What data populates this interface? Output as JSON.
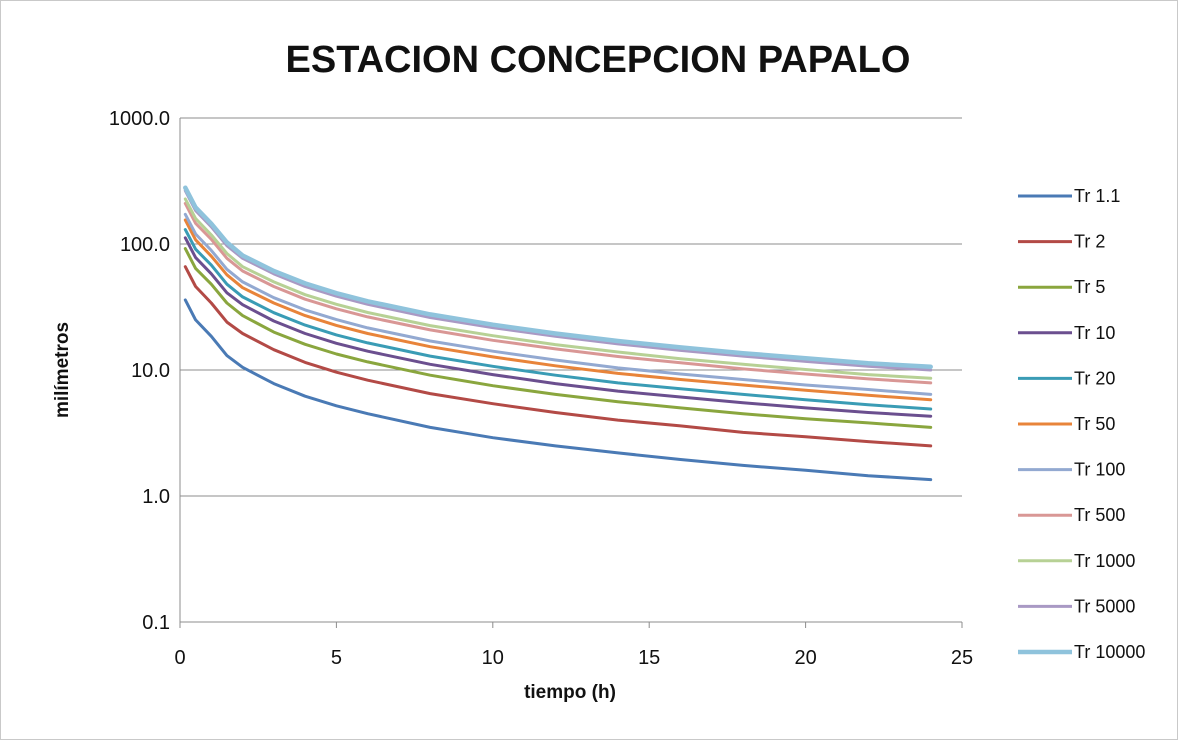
{
  "chart_data": {
    "type": "line",
    "title": "ESTACION CONCEPCION PAPALO",
    "xlabel": "tiempo (h)",
    "ylabel": "milímetros",
    "x_ticks": [
      "0",
      "5",
      "10",
      "15",
      "20",
      "25"
    ],
    "y_ticks": [
      "0.1",
      "1.0",
      "10.0",
      "100.0",
      "1000.0"
    ],
    "xlim": [
      0,
      25
    ],
    "ylim": [
      0.1,
      1000
    ],
    "y_scale": "log",
    "grid": "horizontal",
    "legend_position": "right",
    "x": [
      0.17,
      0.5,
      1,
      1.5,
      2,
      3,
      4,
      5,
      6,
      8,
      10,
      12,
      14,
      16,
      18,
      20,
      22,
      24
    ],
    "series": [
      {
        "name": "Tr 1.1",
        "color": "#4a7ab5",
        "values": [
          36,
          25,
          18.5,
          13,
          10.5,
          7.8,
          6.2,
          5.2,
          4.5,
          3.5,
          2.9,
          2.5,
          2.2,
          1.95,
          1.75,
          1.6,
          1.45,
          1.35
        ]
      },
      {
        "name": "Tr 2",
        "color": "#b34a46",
        "values": [
          66,
          46,
          34,
          24,
          19.5,
          14.5,
          11.5,
          9.6,
          8.3,
          6.5,
          5.4,
          4.6,
          4.0,
          3.6,
          3.2,
          2.95,
          2.7,
          2.5
        ]
      },
      {
        "name": "Tr 5",
        "color": "#8aa63e",
        "values": [
          92,
          64,
          48,
          34,
          27,
          20,
          16,
          13.4,
          11.6,
          9.1,
          7.5,
          6.4,
          5.6,
          5.0,
          4.5,
          4.1,
          3.8,
          3.5
        ]
      },
      {
        "name": "Tr 10",
        "color": "#6b4f8f",
        "values": [
          112,
          78,
          58,
          41,
          33,
          24.5,
          19.5,
          16.3,
          14.1,
          11.1,
          9.2,
          7.8,
          6.8,
          6.1,
          5.5,
          5.0,
          4.6,
          4.3
        ]
      },
      {
        "name": "Tr 20",
        "color": "#3a9cb5",
        "values": [
          130,
          91,
          68,
          48,
          38,
          28.5,
          22.7,
          19.0,
          16.4,
          12.9,
          10.7,
          9.1,
          7.9,
          7.1,
          6.4,
          5.8,
          5.3,
          4.9
        ]
      },
      {
        "name": "Tr 50",
        "color": "#e8843a",
        "values": [
          155,
          108,
          80,
          57,
          45,
          34,
          27,
          22.6,
          19.5,
          15.3,
          12.7,
          10.8,
          9.4,
          8.4,
          7.6,
          6.9,
          6.3,
          5.8
        ]
      },
      {
        "name": "Tr 100",
        "color": "#93a9d1",
        "values": [
          172,
          120,
          89,
          63,
          50,
          37.5,
          30,
          25.1,
          21.6,
          17.0,
          14.1,
          12.0,
          10.4,
          9.3,
          8.4,
          7.6,
          7.0,
          6.4
        ]
      },
      {
        "name": "Tr 500",
        "color": "#d99795",
        "values": [
          210,
          146,
          109,
          77,
          61,
          46,
          36.5,
          30.6,
          26.4,
          20.8,
          17.2,
          14.7,
          12.8,
          11.4,
          10.2,
          9.3,
          8.5,
          7.9
        ]
      },
      {
        "name": "Tr 1000",
        "color": "#b7d195",
        "values": [
          228,
          159,
          118,
          84,
          66,
          50,
          39.6,
          33.2,
          28.6,
          22.5,
          18.7,
          15.9,
          13.9,
          12.3,
          11.1,
          10.1,
          9.2,
          8.6
        ]
      },
      {
        "name": "Tr 5000",
        "color": "#a999c4",
        "values": [
          265,
          184,
          137,
          97,
          77,
          58,
          46,
          38.5,
          33.2,
          26.1,
          21.7,
          18.5,
          16.1,
          14.3,
          12.9,
          11.7,
          10.7,
          10.0
        ]
      },
      {
        "name": "Tr 10000",
        "color": "#8fc3dc",
        "values": [
          280,
          195,
          145,
          103,
          81,
          61,
          48.7,
          40.7,
          35.1,
          27.6,
          22.9,
          19.5,
          17.0,
          15.1,
          13.6,
          12.4,
          11.3,
          10.6
        ]
      }
    ]
  }
}
